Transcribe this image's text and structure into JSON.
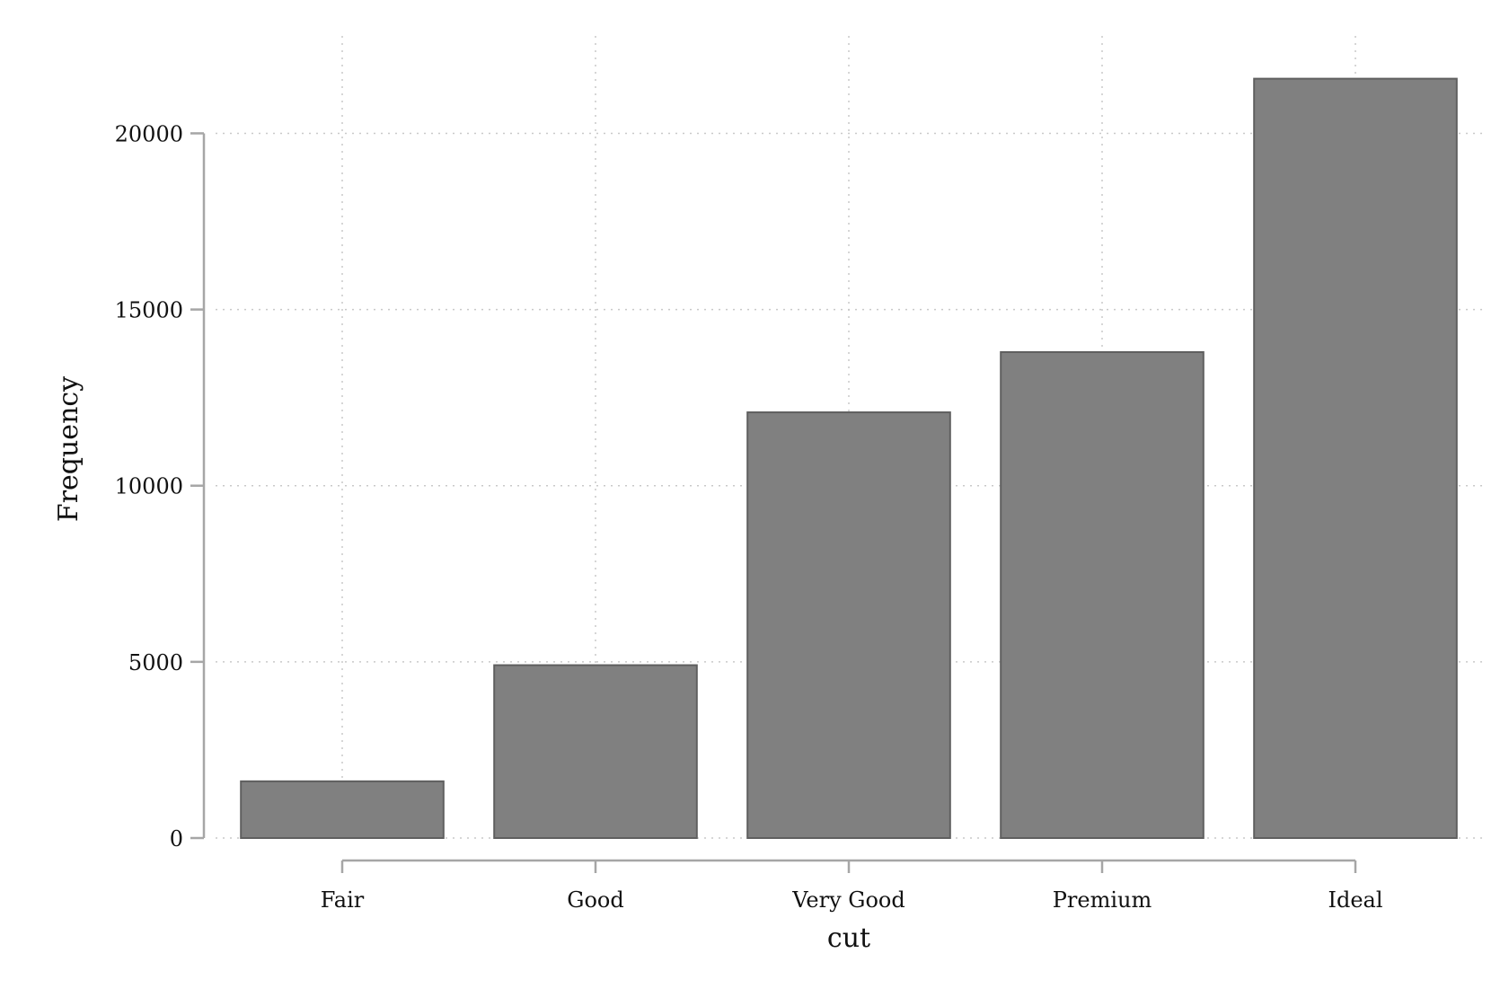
{
  "chart_data": {
    "type": "bar",
    "categories": [
      "Fair",
      "Good",
      "Very Good",
      "Premium",
      "Ideal"
    ],
    "values": [
      1610,
      4906,
      12082,
      13791,
      21551
    ],
    "xlabel": "cut",
    "ylabel": "Frequency",
    "ylim": [
      0,
      22000
    ],
    "yticks": [
      0,
      5000,
      10000,
      15000,
      20000
    ],
    "grid": true,
    "colors": {
      "bar_fill": "#808080",
      "bar_stroke": "#5f5f5f",
      "axis": "#a6a6a6",
      "grid": "#c9c9c9"
    }
  }
}
